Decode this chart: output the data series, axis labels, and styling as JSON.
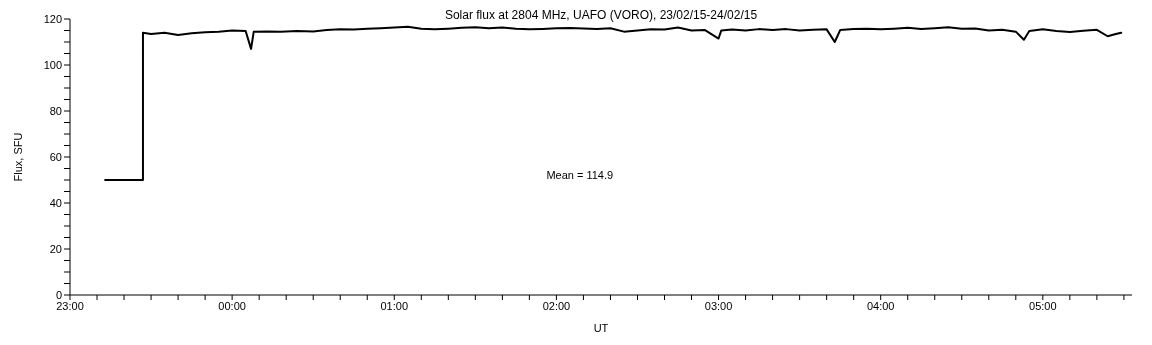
{
  "chart_data": {
    "type": "line",
    "title": "Solar flux at 2804 MHz, UAFO (VORO),  23/02/15-24/02/15",
    "xlabel": "UT",
    "ylabel": "Flux, SFU",
    "annotations": [
      "Mean =  114.9"
    ],
    "xlim": [
      "--02-23T23:00",
      "--02-24T05:33"
    ],
    "xticks": [
      {
        "value": "--02-23T23:00",
        "label": "23:00"
      },
      {
        "value": "--02-23T23:10",
        "label": null
      },
      {
        "value": "--02-23T23:20",
        "label": null
      },
      {
        "value": "--02-23T23:30",
        "label": null
      },
      {
        "value": "--02-23T23:40",
        "label": null
      },
      {
        "value": "--02-23T23:50",
        "label": null
      },
      {
        "value": "--02-24T00:00",
        "label": "00:00"
      },
      {
        "value": "--02-24T00:10",
        "label": null
      },
      {
        "value": "--02-24T00:20",
        "label": null
      },
      {
        "value": "--02-24T00:30",
        "label": null
      },
      {
        "value": "--02-24T00:40",
        "label": null
      },
      {
        "value": "--02-24T00:50",
        "label": null
      },
      {
        "value": "--02-24T01:00",
        "label": "01:00"
      },
      {
        "value": "--02-24T01:10",
        "label": null
      },
      {
        "value": "--02-24T01:20",
        "label": null
      },
      {
        "value": "--02-24T01:30",
        "label": null
      },
      {
        "value": "--02-24T01:40",
        "label": null
      },
      {
        "value": "--02-24T01:50",
        "label": null
      },
      {
        "value": "--02-24T02:00",
        "label": "02:00"
      },
      {
        "value": "--02-24T02:10",
        "label": null
      },
      {
        "value": "--02-24T02:20",
        "label": null
      },
      {
        "value": "--02-24T02:30",
        "label": null
      },
      {
        "value": "--02-24T02:40",
        "label": null
      },
      {
        "value": "--02-24T02:50",
        "label": null
      },
      {
        "value": "--02-24T03:00",
        "label": "03:00"
      },
      {
        "value": "--02-24T03:10",
        "label": null
      },
      {
        "value": "--02-24T03:20",
        "label": null
      },
      {
        "value": "--02-24T03:30",
        "label": null
      },
      {
        "value": "--02-24T03:40",
        "label": null
      },
      {
        "value": "--02-24T03:50",
        "label": null
      },
      {
        "value": "--02-24T04:00",
        "label": "04:00"
      },
      {
        "value": "--02-24T04:10",
        "label": null
      },
      {
        "value": "--02-24T04:20",
        "label": null
      },
      {
        "value": "--02-24T04:30",
        "label": null
      },
      {
        "value": "--02-24T04:40",
        "label": null
      },
      {
        "value": "--02-24T04:50",
        "label": null
      },
      {
        "value": "--02-24T05:00",
        "label": "05:00"
      },
      {
        "value": "--02-24T05:10",
        "label": null
      },
      {
        "value": "--02-24T05:20",
        "label": null
      },
      {
        "value": "--02-24T05:30",
        "label": null
      }
    ],
    "ylim": [
      0,
      120
    ],
    "yticks": [
      0,
      {
        "value": 5,
        "label": null
      },
      {
        "value": 10,
        "label": null
      },
      {
        "value": 15,
        "label": null
      },
      20,
      {
        "value": 25,
        "label": null
      },
      {
        "value": 30,
        "label": null
      },
      {
        "value": 35,
        "label": null
      },
      40,
      {
        "value": 45,
        "label": null
      },
      {
        "value": 50,
        "label": null
      },
      {
        "value": 55,
        "label": null
      },
      60,
      {
        "value": 65,
        "label": null
      },
      {
        "value": 70,
        "label": null
      },
      {
        "value": 75,
        "label": null
      },
      80,
      {
        "value": 85,
        "label": null
      },
      {
        "value": 90,
        "label": null
      },
      {
        "value": 95,
        "label": null
      },
      100,
      {
        "value": 105,
        "label": null
      },
      {
        "value": 110,
        "label": null
      },
      {
        "value": 115,
        "label": null
      },
      120
    ],
    "marker": "none",
    "line_style": "solid",
    "series": [
      {
        "color": "#000000",
        "x": [
          "--02-23T23:13",
          "--02-23T23:27",
          "--02-23T23:27",
          "--02-23T23:30",
          "--02-23T23:35",
          "--02-23T23:40",
          "--02-23T23:45",
          "--02-23T23:50",
          "--02-23T23:55",
          "--02-24T00:00",
          "--02-24T00:05",
          "--02-24T00:07",
          "--02-24T00:08",
          "--02-24T00:13",
          "--02-24T00:18",
          "--02-24T00:24",
          "--02-24T00:30",
          "--02-24T00:35",
          "--02-24T00:40",
          "--02-24T00:45",
          "--02-24T00:50",
          "--02-24T00:55",
          "--02-24T01:00",
          "--02-24T01:05",
          "--02-24T01:10",
          "--02-24T01:15",
          "--02-24T01:20",
          "--02-24T01:25",
          "--02-24T01:30",
          "--02-24T01:35",
          "--02-24T01:40",
          "--02-24T01:45",
          "--02-24T01:50",
          "--02-24T01:55",
          "--02-24T02:00",
          "--02-24T02:05",
          "--02-24T02:10",
          "--02-24T02:15",
          "--02-24T02:20",
          "--02-24T02:25",
          "--02-24T02:30",
          "--02-24T02:35",
          "--02-24T02:40",
          "--02-24T02:45",
          "--02-24T02:50",
          "--02-24T02:55",
          "--02-24T03:00",
          "--02-24T03:01",
          "--02-24T03:05",
          "--02-24T03:10",
          "--02-24T03:15",
          "--02-24T03:20",
          "--02-24T03:25",
          "--02-24T03:30",
          "--02-24T03:35",
          "--02-24T03:40",
          "--02-24T03:43",
          "--02-24T03:45",
          "--02-24T03:50",
          "--02-24T03:55",
          "--02-24T04:00",
          "--02-24T04:05",
          "--02-24T04:10",
          "--02-24T04:15",
          "--02-24T04:20",
          "--02-24T04:25",
          "--02-24T04:30",
          "--02-24T04:35",
          "--02-24T04:40",
          "--02-24T04:45",
          "--02-24T04:50",
          "--02-24T04:53",
          "--02-24T04:55",
          "--02-24T05:00",
          "--02-24T05:05",
          "--02-24T05:10",
          "--02-24T05:15",
          "--02-24T05:20",
          "--02-24T05:24",
          "--02-24T05:27",
          "--02-24T05:29"
        ],
        "values": [
          50,
          50,
          114,
          113.5,
          114,
          113,
          113.8,
          114.2,
          114.5,
          115,
          114.8,
          107,
          114.5,
          114.6,
          114.5,
          114.8,
          114.6,
          115.2,
          115.5,
          115.4,
          115.8,
          116,
          116.3,
          116.6,
          115.8,
          115.5,
          115.8,
          116.2,
          116.4,
          116,
          116.3,
          115.8,
          115.5,
          115.7,
          116,
          116.1,
          115.9,
          115.7,
          116,
          114.5,
          115,
          115.5,
          115.4,
          116.3,
          115,
          115.2,
          111.5,
          115,
          115.4,
          115,
          115.6,
          115.2,
          115.6,
          115,
          115.3,
          115.5,
          110,
          115.2,
          115.7,
          115.8,
          115.5,
          115.8,
          116.2,
          115.7,
          116,
          116.4,
          115.8,
          115.9,
          115,
          115.3,
          114.5,
          111,
          114.8,
          115.5,
          114.8,
          114.4,
          114.9,
          115.3,
          112.5,
          113.5,
          114
        ]
      }
    ]
  }
}
